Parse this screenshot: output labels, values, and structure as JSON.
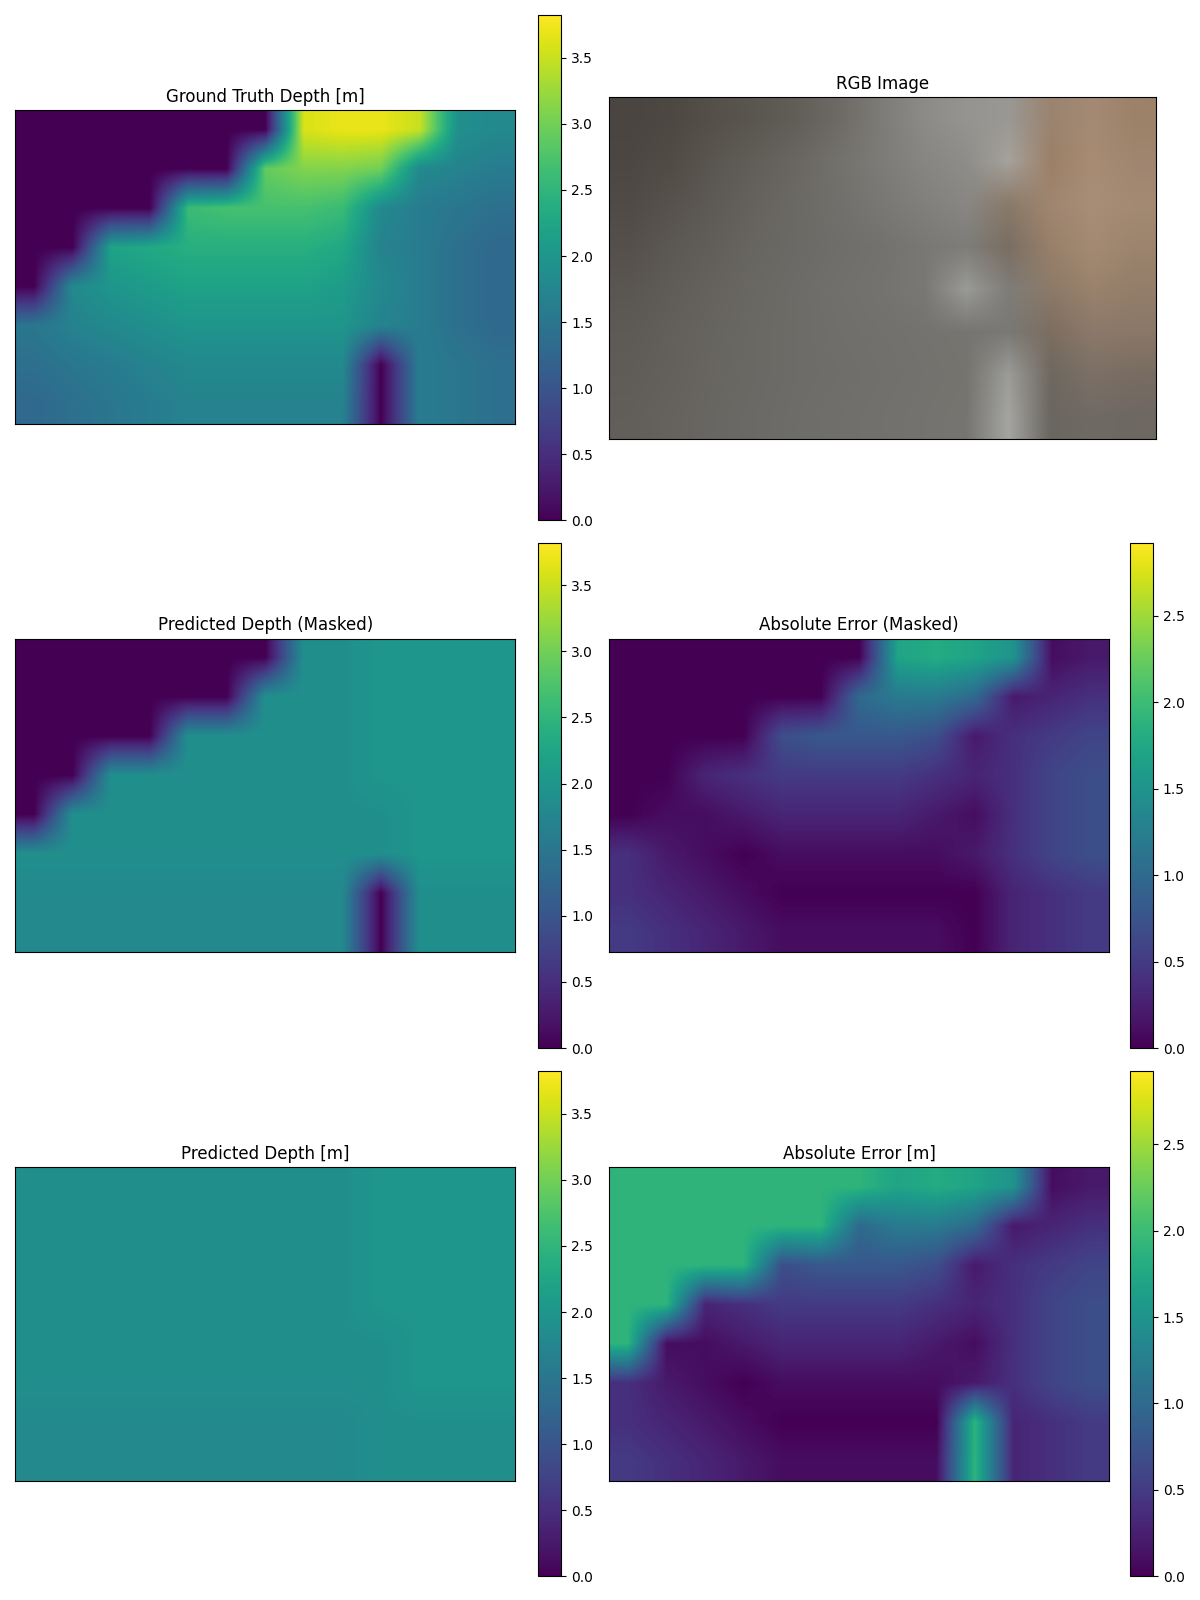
{
  "chart_data": [
    {
      "type": "heatmap",
      "title": "Ground Truth Depth [m]",
      "tick_labels": false,
      "values": [
        [
          0,
          0,
          0,
          0,
          0,
          0,
          0,
          3.6,
          3.7,
          3.7,
          3.5,
          1.9,
          1.8
        ],
        [
          0,
          0,
          0,
          0,
          0,
          0,
          2.9,
          3.1,
          3.1,
          3.0,
          1.8,
          1.7,
          1.6
        ],
        [
          0,
          0,
          0,
          0,
          2.6,
          2.7,
          2.7,
          2.7,
          2.6,
          1.8,
          1.6,
          1.5,
          1.4
        ],
        [
          0,
          0,
          2.2,
          2.3,
          2.4,
          2.4,
          2.4,
          2.4,
          2.3,
          1.7,
          1.6,
          1.4,
          1.3
        ],
        [
          0,
          1.8,
          2.0,
          2.1,
          2.2,
          2.2,
          2.2,
          2.2,
          2.1,
          1.8,
          1.6,
          1.4,
          1.3
        ],
        [
          1.5,
          1.7,
          1.8,
          1.9,
          2.0,
          2.0,
          2.0,
          2.0,
          2.0,
          1.7,
          1.6,
          1.4,
          1.3
        ],
        [
          1.4,
          1.5,
          1.6,
          1.7,
          1.8,
          1.8,
          1.8,
          1.8,
          1.8,
          0,
          1.6,
          1.5,
          1.4
        ],
        [
          1.3,
          1.4,
          1.5,
          1.6,
          1.7,
          1.7,
          1.7,
          1.7,
          1.7,
          0,
          1.6,
          1.5,
          1.4
        ]
      ],
      "colorbar_lim": [
        0.0,
        3.82
      ],
      "colorbar_ticks": [
        0.0,
        0.5,
        1.0,
        1.5,
        2.0,
        2.5,
        3.0,
        3.5
      ]
    },
    {
      "type": "image",
      "title": "RGB Image",
      "tick_labels": false,
      "colors": [
        [
          "#4a4540",
          "#4e4843",
          "#55504a",
          "#5a5650",
          "#625e58",
          "#6e6b66",
          "#7e7c78",
          "#8c8b87",
          "#959490",
          "#9a9894",
          "#9a8470",
          "#a48a74",
          "#9c8268"
        ],
        [
          "#4c4742",
          "#524c46",
          "#5a5650",
          "#625e58",
          "#6a6762",
          "#74726d",
          "#7e7c78",
          "#878682",
          "#8e8d8a",
          "#a6a29c",
          "#9c8068",
          "#a88c74",
          "#a08670"
        ],
        [
          "#504b46",
          "#57524c",
          "#5e5a55",
          "#66635e",
          "#6c6a65",
          "#72706c",
          "#7a7874",
          "#82807c",
          "#888783",
          "#8a7a6a",
          "#a08670",
          "#a88e78",
          "#a48a72"
        ],
        [
          "#55504b",
          "#5c5853",
          "#625f5a",
          "#686661",
          "#6c6a66",
          "#706e6a",
          "#74726e",
          "#7a7874",
          "#7e7d79",
          "#7a6e62",
          "#98806a",
          "#a48a72",
          "#9c846e"
        ],
        [
          "#5a5651",
          "#605c57",
          "#66635e",
          "#6a6863",
          "#6e6c68",
          "#72706c",
          "#747370",
          "#7a7875",
          "#9a9a96",
          "#7e7c78",
          "#8c7a68",
          "#9a826c",
          "#947e6a"
        ],
        [
          "#5e5b56",
          "#63605b",
          "#67655f",
          "#6b6964",
          "#6e6c68",
          "#706f6b",
          "#72716d",
          "#74736f",
          "#767571",
          "#7a7975",
          "#7c6e60",
          "#8c786a",
          "#8a7868"
        ],
        [
          "#605d58",
          "#64615c",
          "#68665f",
          "#6b6965",
          "#6d6c68",
          "#6f6e6a",
          "#71706c",
          "#73726e",
          "#75746f",
          "#9c9c98",
          "#6e6860",
          "#7c7066",
          "#786c62"
        ],
        [
          "#625f5a",
          "#66635e",
          "#696763",
          "#6c6a66",
          "#6e6d69",
          "#706f6b",
          "#72716d",
          "#74736f",
          "#767571",
          "#a4a4a0",
          "#6a6660",
          "#706a64",
          "#6e6862"
        ]
      ]
    },
    {
      "type": "heatmap",
      "title": "Predicted Depth (Masked)",
      "tick_labels": false,
      "values": [
        [
          0,
          0,
          0,
          0,
          0,
          0,
          0,
          1.9,
          1.9,
          2.0,
          2.0,
          2.0,
          2.0
        ],
        [
          0,
          0,
          0,
          0,
          0,
          0,
          1.9,
          1.9,
          1.9,
          2.0,
          2.0,
          2.0,
          2.0
        ],
        [
          0,
          0,
          0,
          0,
          1.9,
          1.9,
          1.9,
          1.9,
          1.9,
          2.0,
          2.0,
          2.0,
          2.0
        ],
        [
          0,
          0,
          1.9,
          1.9,
          1.9,
          1.9,
          1.9,
          1.9,
          1.9,
          2.0,
          2.0,
          2.0,
          2.0
        ],
        [
          0,
          1.9,
          1.9,
          1.9,
          1.9,
          1.9,
          1.9,
          1.9,
          1.9,
          1.9,
          2.0,
          2.0,
          2.0
        ],
        [
          1.9,
          1.9,
          1.9,
          1.9,
          1.9,
          1.9,
          1.9,
          1.9,
          1.9,
          1.9,
          2.0,
          2.0,
          2.0
        ],
        [
          1.8,
          1.8,
          1.8,
          1.8,
          1.8,
          1.8,
          1.8,
          1.8,
          1.8,
          0,
          1.9,
          1.9,
          1.9
        ],
        [
          1.8,
          1.8,
          1.8,
          1.8,
          1.8,
          1.8,
          1.8,
          1.8,
          1.8,
          0,
          1.9,
          1.9,
          1.9
        ]
      ],
      "colorbar_lim": [
        0.0,
        3.82
      ],
      "colorbar_ticks": [
        0.0,
        0.5,
        1.0,
        1.5,
        2.0,
        2.5,
        3.0,
        3.5
      ]
    },
    {
      "type": "heatmap",
      "title": "Absolute Error (Masked)",
      "tick_labels": false,
      "values": [
        [
          0,
          0,
          0,
          0,
          0,
          0,
          0,
          1.7,
          1.8,
          1.7,
          1.5,
          0.1,
          0.2
        ],
        [
          0,
          0,
          0,
          0,
          0,
          0,
          1.0,
          1.2,
          1.2,
          1.0,
          0.2,
          0.3,
          0.4
        ],
        [
          0,
          0,
          0,
          0,
          0.7,
          0.8,
          0.8,
          0.8,
          0.7,
          0.2,
          0.4,
          0.5,
          0.6
        ],
        [
          0,
          0,
          0.3,
          0.4,
          0.5,
          0.5,
          0.5,
          0.5,
          0.4,
          0.3,
          0.4,
          0.6,
          0.7
        ],
        [
          0,
          0.1,
          0.1,
          0.2,
          0.3,
          0.3,
          0.3,
          0.3,
          0.2,
          0.1,
          0.4,
          0.6,
          0.7
        ],
        [
          0.4,
          0.2,
          0.1,
          0.0,
          0.1,
          0.1,
          0.1,
          0.1,
          0.1,
          0.2,
          0.4,
          0.6,
          0.7
        ],
        [
          0.4,
          0.3,
          0.2,
          0.1,
          0.0,
          0.0,
          0.0,
          0.0,
          0.0,
          0,
          0.3,
          0.4,
          0.5
        ],
        [
          0.5,
          0.4,
          0.3,
          0.2,
          0.1,
          0.1,
          0.1,
          0.1,
          0.1,
          0,
          0.3,
          0.4,
          0.5
        ]
      ],
      "colorbar_lim": [
        0.0,
        2.92
      ],
      "colorbar_ticks": [
        0.0,
        0.5,
        1.0,
        1.5,
        2.0,
        2.5
      ]
    },
    {
      "type": "heatmap",
      "title": "Predicted Depth [m]",
      "tick_labels": false,
      "values": [
        [
          1.9,
          1.9,
          1.9,
          1.9,
          1.9,
          1.9,
          1.9,
          1.9,
          1.9,
          2.0,
          2.0,
          2.0,
          2.0
        ],
        [
          1.9,
          1.9,
          1.9,
          1.9,
          1.9,
          1.9,
          1.9,
          1.9,
          1.9,
          2.0,
          2.0,
          2.0,
          2.0
        ],
        [
          1.9,
          1.9,
          1.9,
          1.9,
          1.9,
          1.9,
          1.9,
          1.9,
          1.9,
          2.0,
          2.0,
          2.0,
          2.0
        ],
        [
          1.9,
          1.9,
          1.9,
          1.9,
          1.9,
          1.9,
          1.9,
          1.9,
          1.9,
          2.0,
          2.0,
          2.0,
          2.0
        ],
        [
          1.9,
          1.9,
          1.9,
          1.9,
          1.9,
          1.9,
          1.9,
          1.9,
          1.9,
          1.9,
          2.0,
          2.0,
          2.0
        ],
        [
          1.9,
          1.9,
          1.9,
          1.9,
          1.9,
          1.9,
          1.9,
          1.9,
          1.9,
          1.9,
          2.0,
          2.0,
          2.0
        ],
        [
          1.8,
          1.8,
          1.8,
          1.8,
          1.8,
          1.8,
          1.8,
          1.8,
          1.8,
          1.9,
          1.9,
          1.9,
          1.9
        ],
        [
          1.8,
          1.8,
          1.8,
          1.8,
          1.8,
          1.8,
          1.8,
          1.8,
          1.8,
          1.9,
          1.9,
          1.9,
          1.9
        ]
      ],
      "colorbar_lim": [
        0.0,
        3.82
      ],
      "colorbar_ticks": [
        0.0,
        0.5,
        1.0,
        1.5,
        2.0,
        2.5,
        3.0,
        3.5
      ]
    },
    {
      "type": "heatmap",
      "title": "Absolute Error [m]",
      "tick_labels": false,
      "values": [
        [
          1.9,
          1.9,
          1.9,
          1.9,
          1.9,
          1.9,
          1.9,
          1.7,
          1.8,
          1.7,
          1.5,
          0.1,
          0.2
        ],
        [
          1.9,
          1.9,
          1.9,
          1.9,
          1.9,
          1.9,
          1.0,
          1.2,
          1.2,
          1.0,
          0.2,
          0.3,
          0.4
        ],
        [
          1.9,
          1.9,
          1.9,
          1.9,
          0.7,
          0.8,
          0.8,
          0.8,
          0.7,
          0.2,
          0.4,
          0.5,
          0.6
        ],
        [
          1.9,
          1.9,
          0.3,
          0.4,
          0.5,
          0.5,
          0.5,
          0.5,
          0.4,
          0.3,
          0.4,
          0.6,
          0.7
        ],
        [
          1.9,
          0.1,
          0.1,
          0.2,
          0.3,
          0.3,
          0.3,
          0.3,
          0.2,
          0.1,
          0.4,
          0.6,
          0.7
        ],
        [
          0.4,
          0.2,
          0.1,
          0.0,
          0.1,
          0.1,
          0.1,
          0.1,
          0.1,
          0.2,
          0.4,
          0.6,
          0.7
        ],
        [
          0.4,
          0.3,
          0.2,
          0.1,
          0.0,
          0.0,
          0.0,
          0.0,
          0.0,
          1.9,
          0.3,
          0.4,
          0.5
        ],
        [
          0.5,
          0.4,
          0.3,
          0.2,
          0.1,
          0.1,
          0.1,
          0.1,
          0.1,
          1.9,
          0.3,
          0.4,
          0.5
        ]
      ],
      "colorbar_lim": [
        0.0,
        2.92
      ],
      "colorbar_ticks": [
        0.0,
        0.5,
        1.0,
        1.5,
        2.0,
        2.5
      ]
    }
  ]
}
